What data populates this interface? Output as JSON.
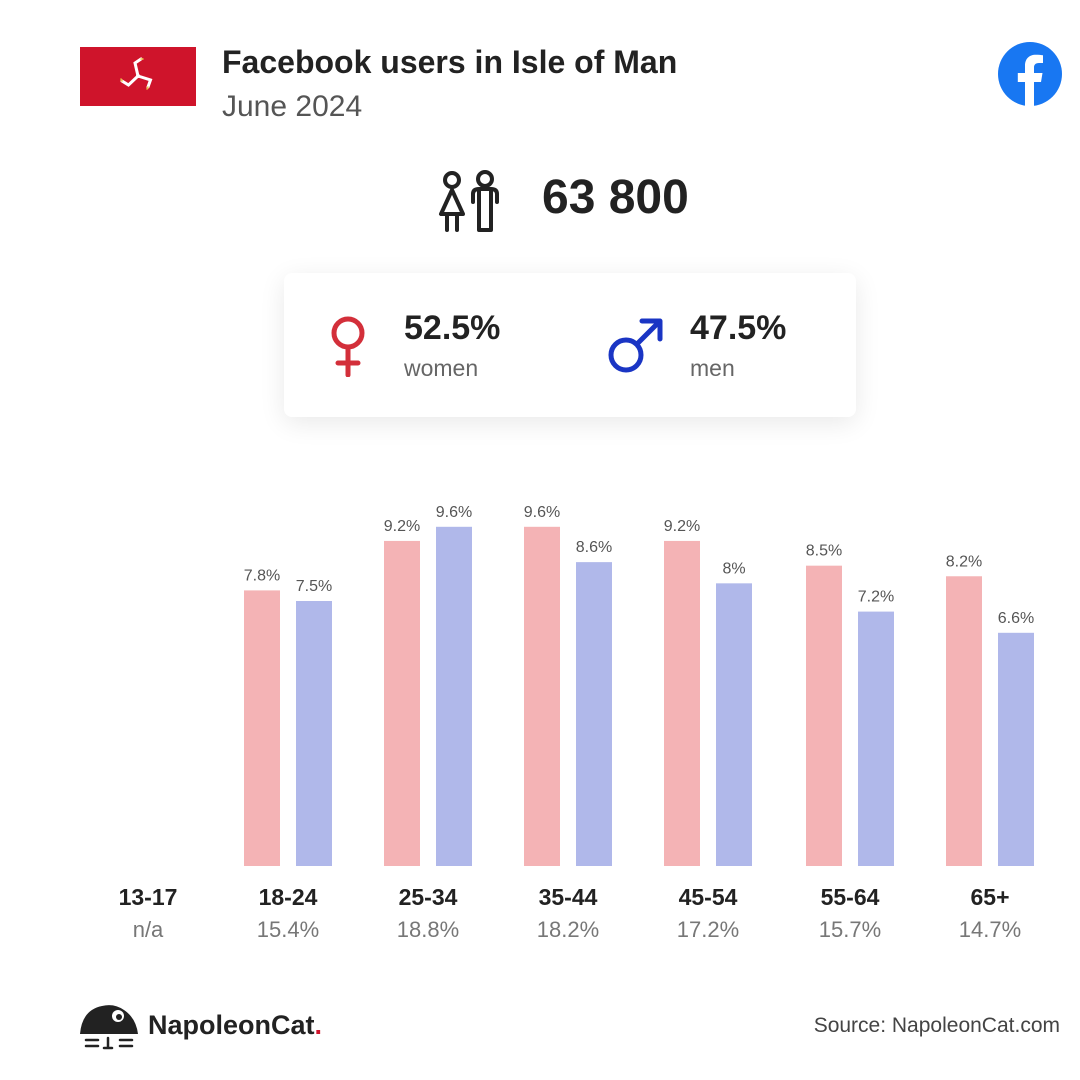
{
  "header": {
    "title": "Facebook users in Isle of Man",
    "subtitle": "June 2024",
    "flag": "isle-of-man-flag",
    "brand_icon": "facebook-icon"
  },
  "summary": {
    "total_users": "63 800",
    "women_pct": "52.5%",
    "women_label": "women",
    "men_pct": "47.5%",
    "men_label": "men"
  },
  "colors": {
    "women": "#f4b3b5",
    "men": "#b0b8ea",
    "female_symbol": "#d32f3a",
    "male_symbol": "#1a35c4",
    "facebook": "#1877f2",
    "flag_red": "#cf142b"
  },
  "chart_data": {
    "type": "bar",
    "categories": [
      "13-17",
      "18-24",
      "25-34",
      "35-44",
      "45-54",
      "55-64",
      "65+"
    ],
    "group_totals": [
      "n/a",
      "15.4%",
      "18.8%",
      "18.2%",
      "17.2%",
      "15.7%",
      "14.7%"
    ],
    "series": [
      {
        "name": "women",
        "values": [
          null,
          7.8,
          9.2,
          9.6,
          9.2,
          8.5,
          8.2
        ],
        "labels": [
          "",
          "7.8%",
          "9.2%",
          "9.6%",
          "9.2%",
          "8.5%",
          "8.2%"
        ]
      },
      {
        "name": "men",
        "values": [
          null,
          7.5,
          9.6,
          8.6,
          8.0,
          7.2,
          6.6
        ],
        "labels": [
          "",
          "7.5%",
          "9.6%",
          "8.6%",
          "8%",
          "7.2%",
          "6.6%"
        ]
      }
    ],
    "ylim": [
      0,
      15
    ],
    "grid": false,
    "legend": "none"
  },
  "footer": {
    "brand_name": "NapoleonCat",
    "brand_dot": ".",
    "source": "Source: NapoleonCat.com"
  }
}
